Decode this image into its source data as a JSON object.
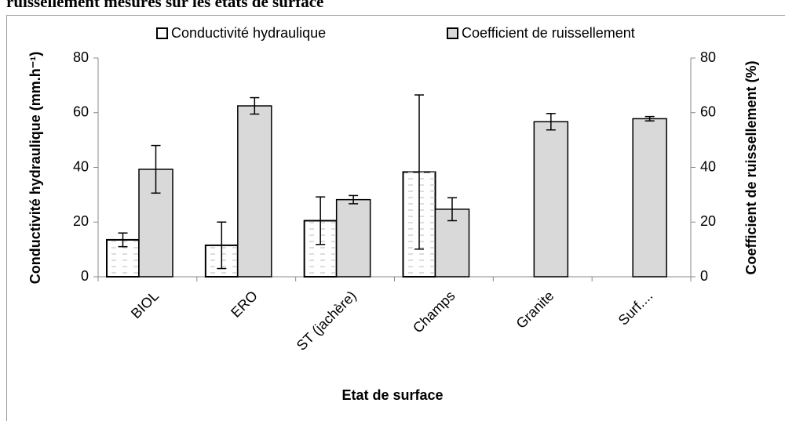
{
  "caption": "ruissellement mesurés sur les états de surface",
  "chart_data": {
    "type": "bar",
    "categories": [
      "BIOL",
      "ERO",
      "ST (jachère)",
      "Champs",
      "Granite",
      "Surf...."
    ],
    "series": [
      {
        "name": "Conductivité hydraulique",
        "color": "#ffffff",
        "values": [
          13.5,
          11.5,
          20.5,
          38.3,
          null,
          null
        ],
        "errors": [
          2.5,
          8.5,
          8.7,
          28.2,
          null,
          null
        ]
      },
      {
        "name": "Coefficient de ruissellement",
        "color": "#d9d9d9",
        "axis": "y2",
        "values": [
          39.3,
          62.5,
          28.2,
          24.7,
          56.7,
          57.8
        ],
        "errors": [
          8.7,
          3,
          1.5,
          4.2,
          3,
          0.8
        ]
      }
    ],
    "xlabel": "Etat de surface",
    "ylabel": "Conductivité hydraulique (mm.h⁻¹)",
    "y2label": "Coefficient de ruissellement (%)",
    "ylim": [
      0,
      80
    ],
    "yticks": [
      0,
      20,
      40,
      60,
      80
    ],
    "y2lim": [
      0,
      80
    ],
    "y2ticks": [
      0,
      20,
      40,
      60,
      80
    ],
    "legend": "top"
  }
}
